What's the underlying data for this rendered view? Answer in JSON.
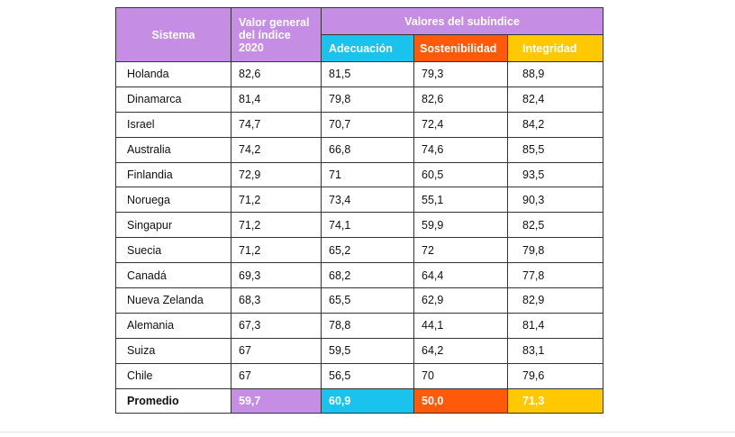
{
  "header": {
    "sistema": "Sistema",
    "valor_line1": "Valor general",
    "valor_line2": "del índice",
    "valor_line3": "2020",
    "subindice": "Valores del subíndice",
    "adecuacion": "Adecuación",
    "sostenibilidad": "Sostenibilidad",
    "integridad": "Integridad"
  },
  "rows": [
    [
      "Holanda",
      "82,6",
      "81,5",
      "79,3",
      "88,9"
    ],
    [
      "Dinamarca",
      "81,4",
      "79,8",
      "82,6",
      "82,4"
    ],
    [
      "Israel",
      "74,7",
      "70,7",
      "72,4",
      "84,2"
    ],
    [
      "Australia",
      "74,2",
      "66,8",
      "74,6",
      "85,5"
    ],
    [
      "Finlandia",
      "72,9",
      "71",
      "60,5",
      "93,5"
    ],
    [
      "Noruega",
      "71,2",
      "73,4",
      "55,1",
      "90,3"
    ],
    [
      "Singapur",
      "71,2",
      "74,1",
      "59,9",
      "82,5"
    ],
    [
      "Suecia",
      "71,2",
      "65,2",
      "72",
      "79,8"
    ],
    [
      "Canadá",
      "69,3",
      "68,2",
      "64,4",
      "77,8"
    ],
    [
      "Nueva Zelanda",
      "68,3",
      "65,5",
      "62,9",
      "82,9"
    ],
    [
      "Alemania",
      "67,3",
      "78,8",
      "44,1",
      "81,4"
    ],
    [
      "Suiza",
      "67",
      "59,5",
      "64,2",
      "83,1"
    ],
    [
      "Chile",
      "67",
      "56,5",
      "70",
      "79,6"
    ]
  ],
  "average": [
    "Promedio",
    "59,7",
    "60,9",
    "50,0",
    "71,3"
  ],
  "colors": {
    "purple": "#c58ee4",
    "cyan": "#19c3ee",
    "orange": "#ff5a0a",
    "yellow": "#ffc800"
  }
}
